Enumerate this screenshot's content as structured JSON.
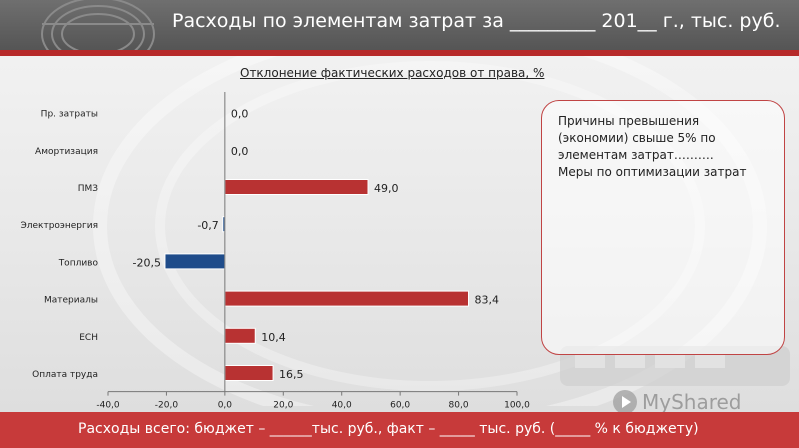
{
  "header": {
    "title": "Расходы по элементам затрат за _________ 201__ г., тыс. руб."
  },
  "chart_data": {
    "type": "bar",
    "orientation": "horizontal",
    "title": "Отклонение фактических расходов от права, %",
    "categories": [
      "Пр. затраты",
      "Амортизация",
      "ПМЗ",
      "Электроэнергия",
      "Топливо",
      "Материалы",
      "ЕСН",
      "Оплата труда"
    ],
    "values": [
      0.0,
      0.0,
      49.0,
      -0.7,
      -20.5,
      83.4,
      10.4,
      16.5
    ],
    "value_labels": [
      "0,0",
      "0,0",
      "49,0",
      "-0,7",
      "-20,5",
      "83,4",
      "10,4",
      "16,5"
    ],
    "xlim": [
      -40,
      100
    ],
    "xticks": [
      "-40,0",
      "-20,0",
      "0,0",
      "20,0",
      "40,0",
      "60,0",
      "80,0",
      "100,0"
    ],
    "colors": {
      "positive": "#b83232",
      "negative": "#1f4c8a"
    },
    "grid": false,
    "legend": "none"
  },
  "note": {
    "lines": [
      "Причины превышения",
      "(экономии) свыше 5% по",
      "элементам затрат……….",
      "Меры по оптимизации затрат"
    ]
  },
  "footer": {
    "text": "Расходы всего: бюджет – ______тыс. руб., факт – _____ тыс. руб. (_____ % к бюджету)"
  },
  "watermark": {
    "text": "MyShared",
    "icon": "play-icon"
  }
}
